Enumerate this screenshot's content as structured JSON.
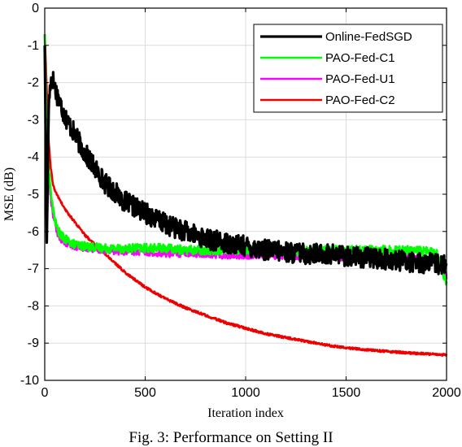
{
  "caption": "Fig. 3: Performance on Setting II",
  "chart_data": {
    "type": "line",
    "title": "",
    "xlabel": "Iteration index",
    "ylabel": "MSE (dB)",
    "xlim": [
      0,
      2000
    ],
    "ylim": [
      -10,
      0
    ],
    "xticks": [
      0,
      500,
      1000,
      1500,
      2000
    ],
    "yticks": [
      0,
      -1,
      -2,
      -3,
      -4,
      -5,
      -6,
      -7,
      -8,
      -9,
      -10
    ],
    "grid": true,
    "legend_position": "top-right",
    "series": [
      {
        "name": "Online-FedSGD",
        "color": "#000000",
        "noise": 0.28,
        "x": [
          0,
          10,
          20,
          30,
          40,
          60,
          80,
          100,
          150,
          200,
          250,
          300,
          400,
          500,
          600,
          700,
          800,
          900,
          1000,
          1100,
          1200,
          1300,
          1400,
          1500,
          1600,
          1700,
          1800,
          1900,
          2000
        ],
        "y": [
          -1.0,
          -6.3,
          -2.6,
          -1.9,
          -1.9,
          -2.3,
          -2.6,
          -2.9,
          -3.4,
          -3.9,
          -4.3,
          -4.7,
          -5.2,
          -5.5,
          -5.8,
          -6.0,
          -6.2,
          -6.3,
          -6.4,
          -6.5,
          -6.55,
          -6.6,
          -6.6,
          -6.65,
          -6.7,
          -6.75,
          -6.8,
          -6.85,
          -6.9
        ]
      },
      {
        "name": "PAO-Fed-C1",
        "color": "#00ff00",
        "noise": 0.12,
        "x": [
          0,
          10,
          20,
          30,
          40,
          60,
          80,
          100,
          150,
          200,
          300,
          400,
          500,
          600,
          700,
          800,
          900,
          1000,
          1200,
          1400,
          1600,
          1800,
          1950,
          2000
        ],
        "y": [
          -0.7,
          -3.5,
          -4.3,
          -4.9,
          -5.4,
          -5.9,
          -6.1,
          -6.2,
          -6.35,
          -6.4,
          -6.45,
          -6.45,
          -6.45,
          -6.45,
          -6.5,
          -6.5,
          -6.5,
          -6.5,
          -6.55,
          -6.5,
          -6.5,
          -6.5,
          -6.55,
          -7.4
        ]
      },
      {
        "name": "PAO-Fed-U1",
        "color": "#ff00ff",
        "noise": 0.09,
        "x": [
          0,
          10,
          20,
          30,
          40,
          60,
          80,
          100,
          150,
          200,
          300,
          400,
          500,
          600,
          700,
          800,
          900,
          1000,
          1200,
          1400,
          1600,
          1800,
          1950,
          2000
        ],
        "y": [
          -0.7,
          -3.6,
          -4.5,
          -5.1,
          -5.5,
          -6.0,
          -6.2,
          -6.3,
          -6.4,
          -6.45,
          -6.5,
          -6.55,
          -6.55,
          -6.6,
          -6.6,
          -6.6,
          -6.65,
          -6.65,
          -6.65,
          -6.7,
          -6.7,
          -6.7,
          -6.75,
          -7.2
        ]
      },
      {
        "name": "PAO-Fed-C2",
        "color": "#ee0000",
        "noise": 0.03,
        "x": [
          0,
          10,
          20,
          30,
          40,
          50,
          60,
          80,
          100,
          150,
          200,
          300,
          400,
          500,
          600,
          700,
          800,
          900,
          1000,
          1100,
          1200,
          1300,
          1400,
          1500,
          1600,
          1700,
          1800,
          1900,
          2000
        ],
        "y": [
          -0.7,
          -2.2,
          -3.6,
          -4.3,
          -4.7,
          -4.9,
          -5.0,
          -5.2,
          -5.4,
          -5.75,
          -6.1,
          -6.6,
          -7.1,
          -7.5,
          -7.8,
          -8.05,
          -8.25,
          -8.45,
          -8.6,
          -8.75,
          -8.85,
          -8.95,
          -9.05,
          -9.12,
          -9.18,
          -9.22,
          -9.26,
          -9.29,
          -9.32
        ]
      }
    ]
  }
}
